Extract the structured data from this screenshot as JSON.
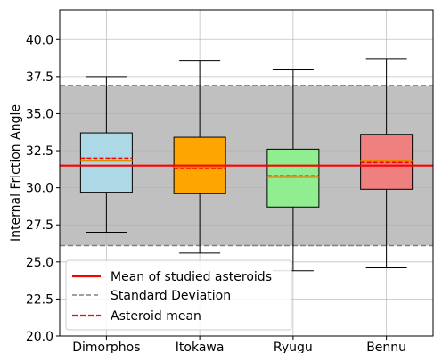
{
  "chart_data": {
    "type": "box",
    "ylabel": "Internal Friction Angle",
    "xlabel": "",
    "title": "",
    "ylim": [
      20.0,
      42.0
    ],
    "yticks": [
      20.0,
      22.5,
      25.0,
      27.5,
      30.0,
      32.5,
      35.0,
      37.5,
      40.0
    ],
    "ytick_labels": [
      "20.0",
      "22.5",
      "25.0",
      "27.5",
      "30.0",
      "32.5",
      "35.0",
      "37.5",
      "40.0"
    ],
    "grid": true,
    "categories": [
      "Dimorphos",
      "Itokawa",
      "Ryugu",
      "Bennu"
    ],
    "boxes": [
      {
        "name": "Dimorphos",
        "whisker_low": 27.0,
        "q1": 29.7,
        "median": 31.8,
        "mean": 32.0,
        "q3": 33.7,
        "whisker_high": 37.5,
        "color": "#add8e6"
      },
      {
        "name": "Itokawa",
        "whisker_low": 25.6,
        "q1": 29.6,
        "median": 31.4,
        "mean": 31.3,
        "q3": 33.4,
        "whisker_high": 38.6,
        "color": "#ffa500"
      },
      {
        "name": "Ryugu",
        "whisker_low": 24.4,
        "q1": 28.7,
        "median": 30.7,
        "mean": 30.8,
        "q3": 32.6,
        "whisker_high": 38.0,
        "color": "#90ee90"
      },
      {
        "name": "Bennu",
        "whisker_low": 24.6,
        "q1": 29.9,
        "median": 31.8,
        "mean": 31.7,
        "q3": 33.6,
        "whisker_high": 38.7,
        "color": "#f08080"
      }
    ],
    "overall_mean": 31.5,
    "std_band": [
      26.1,
      36.9
    ],
    "legend": {
      "placement": "lower-left",
      "entries": [
        {
          "label": "Mean of studied asteroids",
          "style": "solid",
          "color": "#ff0000"
        },
        {
          "label": "Standard Deviation",
          "style": "dashed",
          "color": "#808080"
        },
        {
          "label": "Asteroid mean",
          "style": "dashed",
          "color": "#ff0000"
        }
      ]
    }
  }
}
